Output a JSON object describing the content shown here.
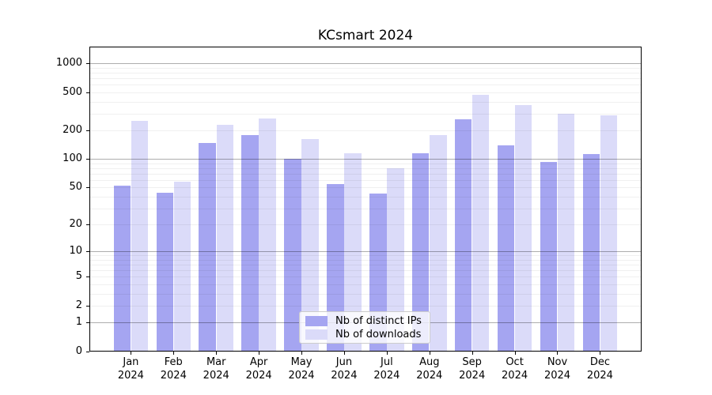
{
  "chart_data": {
    "type": "bar",
    "title": "KCsmart 2024",
    "categories": [
      "Jan",
      "Feb",
      "Mar",
      "Apr",
      "May",
      "Jun",
      "Jul",
      "Aug",
      "Sep",
      "Oct",
      "Nov",
      "Dec"
    ],
    "x_tick_second_line": "2024",
    "series": [
      {
        "name": "Nb of distinct IPs",
        "color": "#a5a5f1",
        "values": [
          52,
          44,
          148,
          180,
          100,
          55,
          43,
          116,
          260,
          140,
          94,
          113
        ]
      },
      {
        "name": "Nb of downloads",
        "color": "#dbdbf9",
        "values": [
          253,
          58,
          228,
          266,
          164,
          115,
          80,
          180,
          470,
          365,
          298,
          285
        ]
      }
    ],
    "y_scale": "log10(1+x)",
    "ylim": [
      0,
      1500
    ],
    "y_tick_values": [
      0,
      1,
      2,
      5,
      10,
      20,
      50,
      100,
      200,
      500,
      1000
    ],
    "y_tick_labels": [
      "0",
      "1",
      "2",
      "5",
      "10",
      "20",
      "50",
      "100",
      "200",
      "500",
      "1000"
    ],
    "y_major_gridlines": [
      1,
      10,
      100,
      1000
    ],
    "y_minor_gridlines": [
      2,
      3,
      4,
      5,
      6,
      7,
      8,
      9,
      20,
      30,
      40,
      50,
      60,
      70,
      80,
      90,
      200,
      300,
      400,
      500,
      600,
      700,
      800,
      900
    ],
    "grid": true,
    "legend": {
      "position": "lower center"
    },
    "colors": {
      "background": "#ffffff",
      "axis": "#000000",
      "major_grid": "rgba(0,0,0,0.32)",
      "minor_grid": "rgba(0,0,0,0.06)"
    }
  }
}
